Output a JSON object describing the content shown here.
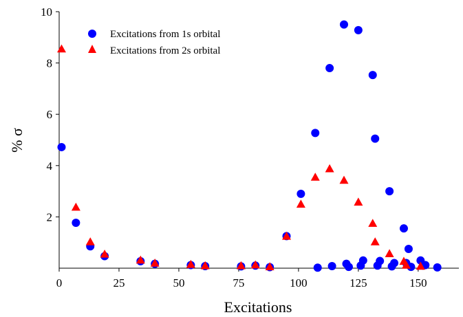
{
  "chart_data": {
    "type": "scatter",
    "xlabel": "Excitations",
    "ylabel": "% σ",
    "xlim": [
      0,
      167
    ],
    "ylim": [
      0,
      10
    ],
    "xticks": [
      0,
      25,
      50,
      75,
      100,
      125,
      150
    ],
    "yticks": [
      2,
      4,
      6,
      8,
      10
    ],
    "grid": false,
    "legend_position": "top-left",
    "series": [
      {
        "name": "Excitations from 1s orbital",
        "marker": "circle",
        "color": "#0000ff",
        "points": [
          [
            1,
            4.72
          ],
          [
            7,
            1.77
          ],
          [
            13,
            0.85
          ],
          [
            19,
            0.47
          ],
          [
            34,
            0.27
          ],
          [
            40,
            0.17
          ],
          [
            55,
            0.12
          ],
          [
            61,
            0.08
          ],
          [
            76,
            0.07
          ],
          [
            82,
            0.1
          ],
          [
            88,
            0.04
          ],
          [
            95,
            1.25
          ],
          [
            101,
            2.9
          ],
          [
            107,
            5.27
          ],
          [
            108,
            0.02
          ],
          [
            113,
            7.8
          ],
          [
            114,
            0.08
          ],
          [
            119,
            9.5
          ],
          [
            120,
            0.17
          ],
          [
            121,
            0.05
          ],
          [
            125,
            9.28
          ],
          [
            126,
            0.1
          ],
          [
            127,
            0.3
          ],
          [
            131,
            7.53
          ],
          [
            132,
            5.05
          ],
          [
            133,
            0.1
          ],
          [
            134,
            0.28
          ],
          [
            138,
            3.0
          ],
          [
            139,
            0.07
          ],
          [
            140,
            0.2
          ],
          [
            144,
            1.55
          ],
          [
            145,
            0.2
          ],
          [
            146,
            0.75
          ],
          [
            147,
            0.05
          ],
          [
            151,
            0.3
          ],
          [
            152,
            0.1
          ],
          [
            153,
            0.12
          ],
          [
            158,
            0.03
          ]
        ]
      },
      {
        "name": "Excitations from 2s orbital",
        "marker": "triangle",
        "color": "#ff0000",
        "points": [
          [
            1,
            8.55
          ],
          [
            7,
            2.38
          ],
          [
            13,
            1.03
          ],
          [
            19,
            0.55
          ],
          [
            34,
            0.32
          ],
          [
            40,
            0.2
          ],
          [
            55,
            0.15
          ],
          [
            61,
            0.1
          ],
          [
            76,
            0.1
          ],
          [
            82,
            0.13
          ],
          [
            88,
            0.06
          ],
          [
            95,
            1.25
          ],
          [
            101,
            2.5
          ],
          [
            107,
            3.55
          ],
          [
            113,
            3.88
          ],
          [
            119,
            3.43
          ],
          [
            125,
            2.58
          ],
          [
            131,
            1.75
          ],
          [
            132,
            1.03
          ],
          [
            138,
            0.57
          ],
          [
            144,
            0.27
          ],
          [
            145,
            0.12
          ],
          [
            151,
            0.08
          ]
        ]
      }
    ]
  }
}
